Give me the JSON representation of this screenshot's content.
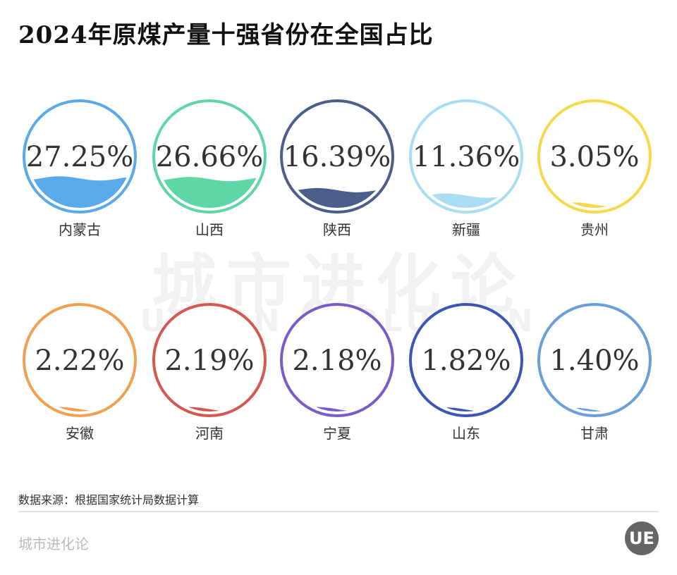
{
  "title": "2024年原煤产量十强省份在全国占比",
  "watermark": {
    "cn": "城市进化论",
    "en": "URBAN EVOLUTION"
  },
  "source": "数据来源：根据国家统计局数据计算",
  "brand": "城市进化论",
  "logo": "UE",
  "chart_data": {
    "type": "liquid-fill-gauge",
    "title": "2024年原煤产量十强省份在全国占比",
    "unit": "%",
    "items": [
      {
        "label": "内蒙古",
        "value": 27.25,
        "display": "27.25%",
        "color": "#5aa9e8"
      },
      {
        "label": "山西",
        "value": 26.66,
        "display": "26.66%",
        "color": "#5ed6a6"
      },
      {
        "label": "陕西",
        "value": 16.39,
        "display": "16.39%",
        "color": "#4b5e8c"
      },
      {
        "label": "新疆",
        "value": 11.36,
        "display": "11.36%",
        "color": "#a9ddf3"
      },
      {
        "label": "贵州",
        "value": 3.05,
        "display": "3.05%",
        "color": "#f6d94a"
      },
      {
        "label": "安徽",
        "value": 2.22,
        "display": "2.22%",
        "color": "#f0a052"
      },
      {
        "label": "河南",
        "value": 2.19,
        "display": "2.19%",
        "color": "#d65650"
      },
      {
        "label": "宁夏",
        "value": 2.18,
        "display": "2.18%",
        "color": "#7a5cc9"
      },
      {
        "label": "山东",
        "value": 1.82,
        "display": "1.82%",
        "color": "#3b56b5"
      },
      {
        "label": "甘肃",
        "value": 1.4,
        "display": "1.40%",
        "color": "#6a9fd9"
      }
    ]
  }
}
